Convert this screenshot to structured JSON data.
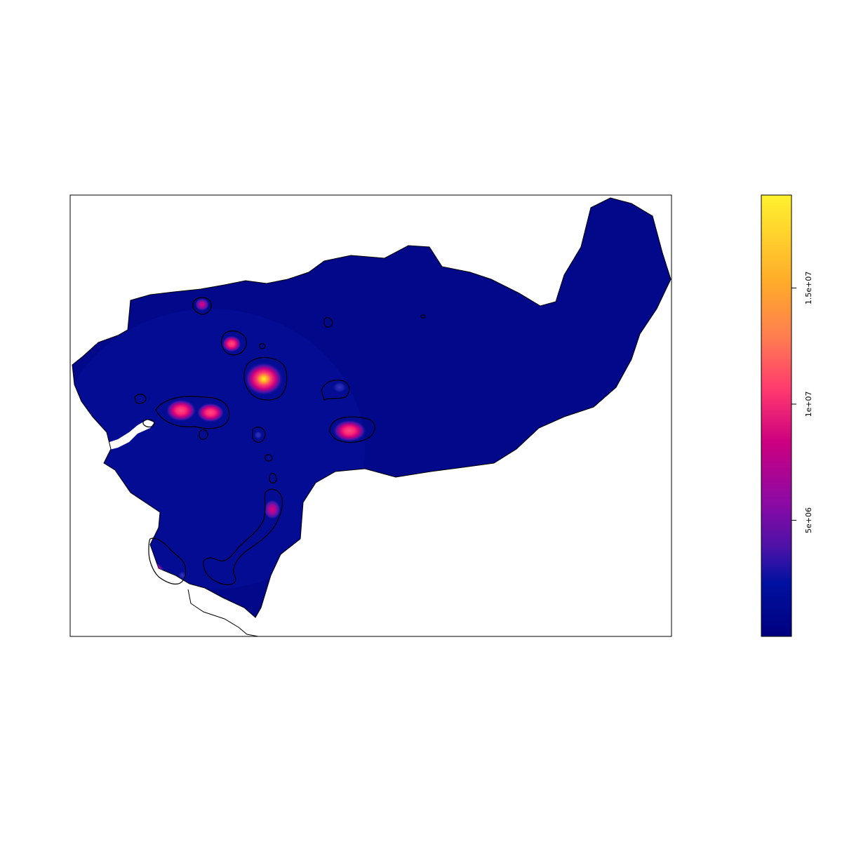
{
  "chart_data": {
    "type": "heatmap",
    "title": "",
    "xlabel": "",
    "ylabel": "",
    "legend": {
      "placement": "right",
      "range": [
        0,
        19000000
      ],
      "ticks": [
        {
          "value": 5000000,
          "label": "5e+06"
        },
        {
          "value": 10000000,
          "label": "1e+07"
        },
        {
          "value": 15000000,
          "label": "1.5e+07"
        }
      ],
      "color_stops": [
        "#00007F",
        "#0011A0",
        "#4A12A8",
        "#8B0AA5",
        "#CC0080",
        "#FF3A6E",
        "#FF7E50",
        "#FFAA2A",
        "#FFF22E"
      ]
    },
    "background_level": 800000,
    "hotspots": [
      {
        "name": "",
        "value": 19000000
      },
      {
        "name": "",
        "value": 12500000
      },
      {
        "name": "",
        "value": 12000000
      },
      {
        "name": "",
        "value": 11500000
      },
      {
        "name": "",
        "value": 10500000
      },
      {
        "name": "",
        "value": 9500000
      },
      {
        "name": "",
        "value": 8000000
      },
      {
        "name": "",
        "value": 7500000
      },
      {
        "name": "",
        "value": 3500000
      },
      {
        "name": "",
        "value": 2200000
      },
      {
        "name": "",
        "value": 2000000
      }
    ]
  }
}
